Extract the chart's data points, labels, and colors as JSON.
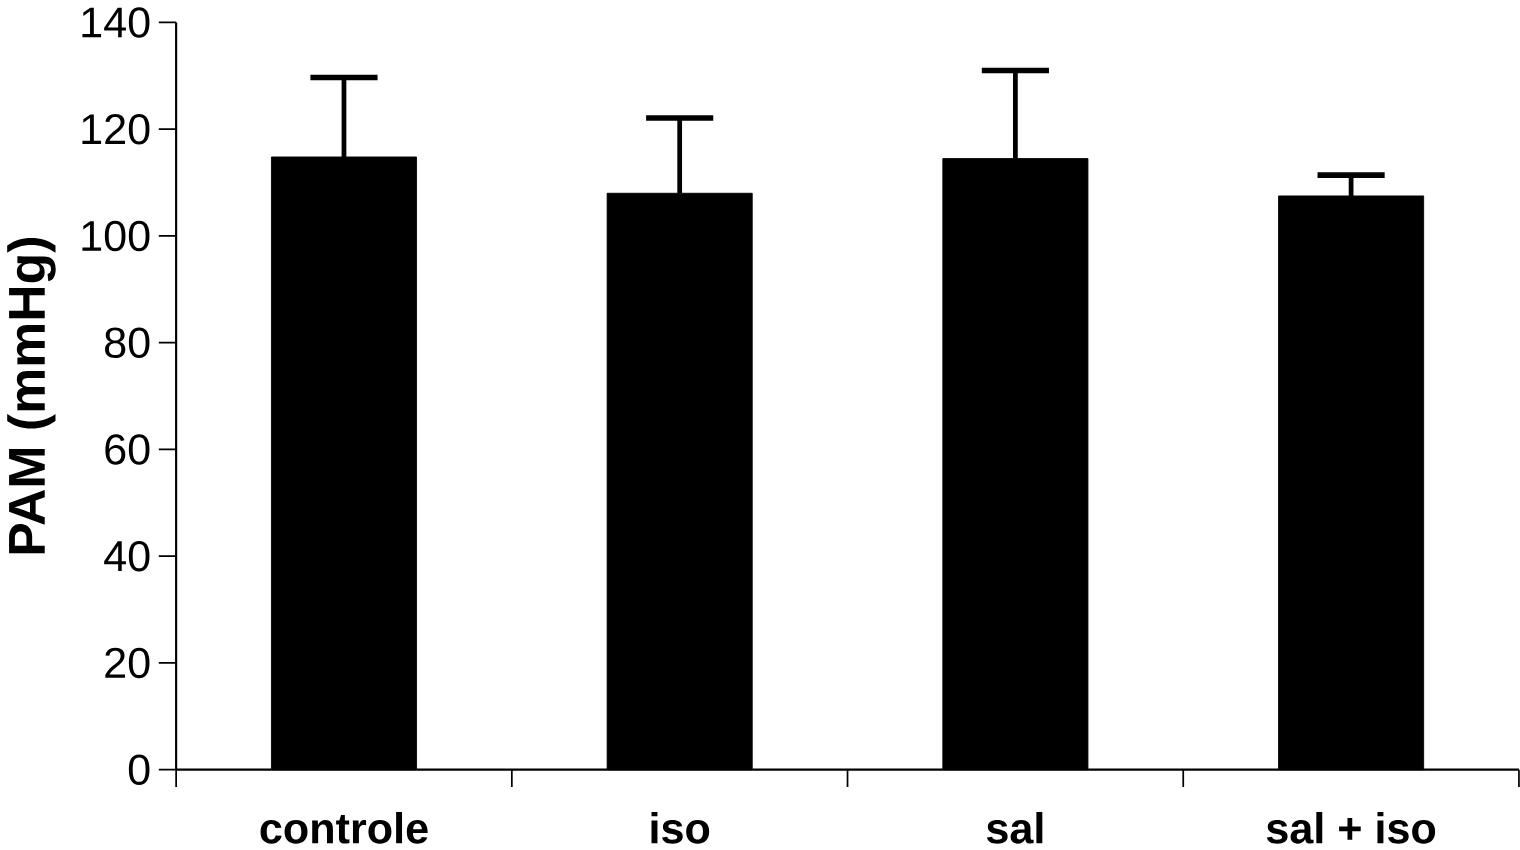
{
  "chart_data": {
    "type": "bar",
    "ylabel": "PAM (mmHg)",
    "categories": [
      "controle",
      "iso",
      "sal",
      "sal + iso"
    ],
    "values": [
      114.8,
      108.0,
      114.5,
      107.5
    ],
    "errors": [
      [
        114.8,
        129.7
      ],
      [
        108.0,
        122.1
      ],
      [
        114.5,
        131.0
      ],
      [
        107.5,
        111.4
      ]
    ],
    "color": "#000000",
    "ylim": [
      0,
      140
    ],
    "yticks": [
      0,
      20,
      40,
      60,
      80,
      100,
      120,
      140
    ],
    "grid": false
  }
}
